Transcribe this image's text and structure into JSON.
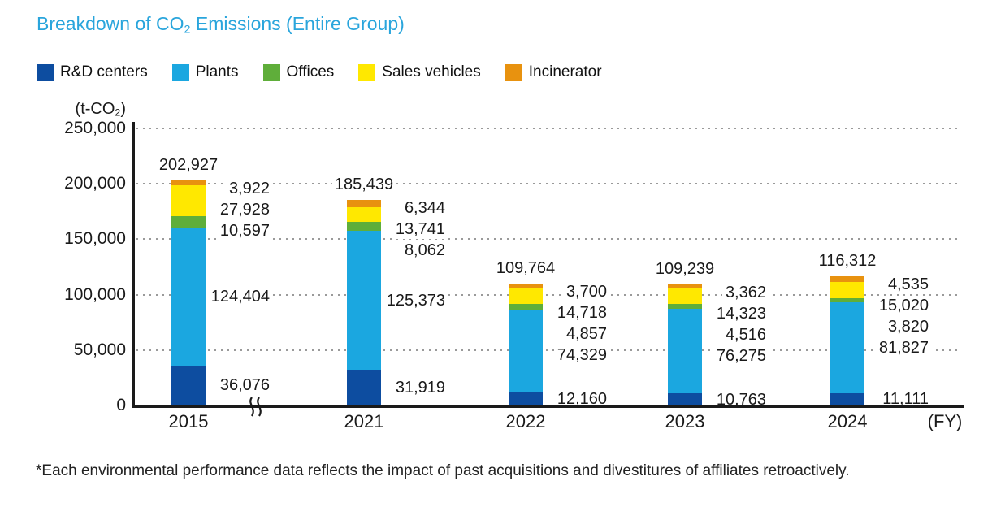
{
  "header": {
    "title_pre": "Breakdown of CO",
    "title_sub": "2",
    "title_post": " Emissions (Entire Group)",
    "title_color": "#29a5dc"
  },
  "unit": {
    "pre": "(t-CO",
    "sub": "2",
    "post": ")"
  },
  "footnote": "*Each environmental performance data reflects the impact of past acquisitions and divestitures of affiliates retroactively.",
  "chart_data": {
    "type": "bar",
    "subtype": "stacked-vertical",
    "title": "Breakdown of CO2 Emissions (Entire Group)",
    "ylabel": "(t-CO2)",
    "xlabel": "(FY)",
    "categories": [
      "2015",
      "2021",
      "2022",
      "2023",
      "2024"
    ],
    "series": [
      {
        "name": "R&D centers",
        "color": "#0d4da0",
        "values": [
          36076,
          31919,
          12160,
          10763,
          11111
        ]
      },
      {
        "name": "Plants",
        "color": "#1ba7e0",
        "values": [
          124404,
          125373,
          74329,
          76275,
          81827
        ]
      },
      {
        "name": "Offices",
        "color": "#5fae3a",
        "values": [
          10597,
          8062,
          4857,
          4516,
          3820
        ]
      },
      {
        "name": "Sales vehicles",
        "color": "#ffe800",
        "values": [
          27928,
          13741,
          14718,
          14323,
          15020
        ]
      },
      {
        "name": "Incinerator",
        "color": "#e8920f",
        "values": [
          3922,
          6344,
          3700,
          3362,
          4535
        ]
      }
    ],
    "totals": [
      202927,
      185439,
      109764,
      109239,
      116312
    ],
    "ylim": [
      0,
      250000
    ],
    "ytick_step": 50000,
    "grid": "horizontal-dotted",
    "legend_position": "top",
    "axis_break_after_first_category": true
  }
}
